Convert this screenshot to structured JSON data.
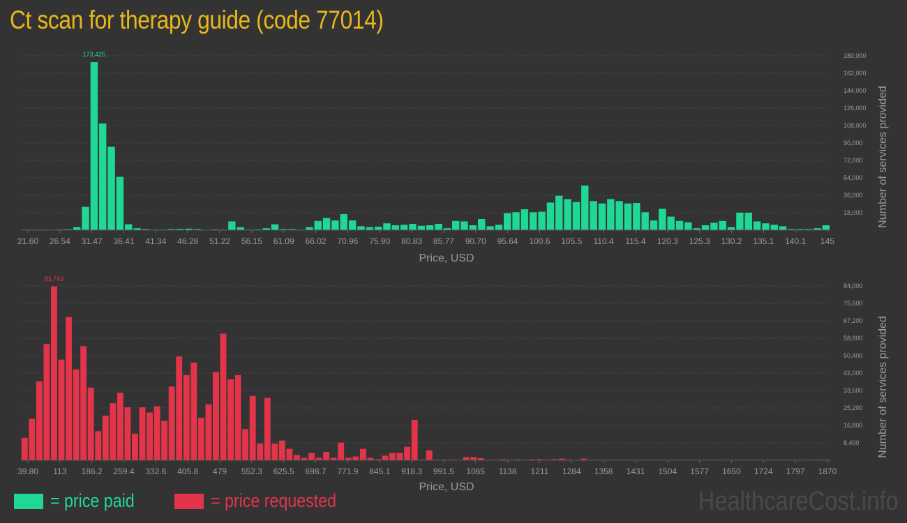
{
  "title": "Ct scan for therapy guide (code 77014)",
  "watermark": "HealthcareCost.info",
  "legend": [
    {
      "label": "= price paid",
      "color": "#20d895"
    },
    {
      "label": "= price requested",
      "color": "#e3344a"
    }
  ],
  "chart_data": [
    {
      "type": "bar",
      "name": "price paid",
      "color": "#20d895",
      "xlabel": "Price, USD",
      "ylabel": "Number of services provided",
      "ylim": [
        0,
        180000
      ],
      "yticks": [
        18000,
        36000,
        54000,
        72000,
        90000,
        108000,
        126000,
        144000,
        162000,
        180000
      ],
      "ytick_labels": [
        "18,000",
        "36,000",
        "54,000",
        "72,000",
        "90,000",
        "108,000",
        "126,000",
        "144,000",
        "162,000",
        "180,000"
      ],
      "xtick_labels": [
        "21.60",
        "26.54",
        "31.47",
        "36.41",
        "41.34",
        "46.28",
        "51.22",
        "56.15",
        "61.09",
        "66.02",
        "70.96",
        "75.90",
        "80.83",
        "85.77",
        "90.70",
        "95.64",
        "100.6",
        "105.5",
        "110.4",
        "115.4",
        "120.3",
        "125.3",
        "130.2",
        "135.1",
        "140.1",
        "145"
      ],
      "peak_label": "173,425",
      "values": [
        500,
        500,
        500,
        400,
        600,
        800,
        3000,
        24000,
        173425,
        110000,
        86000,
        55000,
        6000,
        2000,
        1000,
        500,
        600,
        1000,
        1200,
        1500,
        1000,
        400,
        700,
        500,
        9000,
        3000,
        500,
        700,
        2000,
        6000,
        1000,
        1000,
        500,
        3000,
        9500,
        12500,
        10000,
        16500,
        10000,
        4000,
        3000,
        3500,
        7000,
        5000,
        5500,
        6500,
        4500,
        5000,
        6500,
        2000,
        9500,
        9000,
        5000,
        11500,
        4000,
        5500,
        17500,
        18500,
        21500,
        18500,
        19000,
        28500,
        35500,
        32000,
        29000,
        46000,
        30000,
        27500,
        32000,
        30000,
        27500,
        28000,
        18500,
        10000,
        22000,
        14000,
        9500,
        8000,
        2000,
        5000,
        7500,
        9500,
        3000,
        18000,
        18000,
        9000,
        7000,
        5500,
        4000,
        1000,
        1000,
        1000,
        2000,
        5000
      ]
    },
    {
      "type": "bar",
      "name": "price requested",
      "color": "#e3344a",
      "xlabel": "Price, USD",
      "ylabel": "Number of services provided",
      "ylim": [
        0,
        84000
      ],
      "yticks": [
        8400,
        16800,
        25200,
        33600,
        42000,
        50400,
        58800,
        67200,
        75600,
        84000
      ],
      "ytick_labels": [
        "8,400",
        "16,800",
        "25,200",
        "33,600",
        "42,000",
        "50,400",
        "58,800",
        "67,200",
        "75,600",
        "84,000"
      ],
      "xtick_labels": [
        "39.80",
        "113",
        "186.2",
        "259.4",
        "332.6",
        "405.8",
        "479",
        "552.3",
        "625.5",
        "698.7",
        "771.9",
        "845.1",
        "918.3",
        "991.5",
        "1065",
        "1138",
        "1211",
        "1284",
        "1358",
        "1431",
        "1504",
        "1577",
        "1650",
        "1724",
        "1797",
        "1870"
      ],
      "peak_label": "83,743",
      "values": [
        10800,
        20000,
        38000,
        56000,
        83743,
        48500,
        69000,
        43800,
        55000,
        35000,
        14000,
        21500,
        27500,
        32500,
        25500,
        12800,
        25500,
        23000,
        26000,
        19000,
        35500,
        50000,
        41000,
        47000,
        20500,
        27000,
        42500,
        61000,
        39000,
        41000,
        15000,
        31000,
        8000,
        30000,
        8000,
        9500,
        5500,
        2500,
        1200,
        3500,
        1200,
        4000,
        1200,
        8500,
        1200,
        1800,
        5500,
        1200,
        500,
        2200,
        3500,
        3500,
        6500,
        19500,
        300,
        4800,
        300,
        300,
        300,
        200,
        1500,
        1500,
        1000,
        300,
        200,
        500,
        200,
        400,
        200,
        500,
        500,
        300,
        500,
        800,
        300,
        200,
        800,
        200,
        200,
        200,
        200,
        200,
        200,
        200,
        200,
        200,
        200,
        200,
        200,
        200,
        200,
        200,
        200,
        200,
        200,
        200,
        200,
        200,
        200,
        200,
        200,
        200,
        200,
        200,
        200,
        200,
        200,
        200,
        300,
        300
      ]
    }
  ]
}
